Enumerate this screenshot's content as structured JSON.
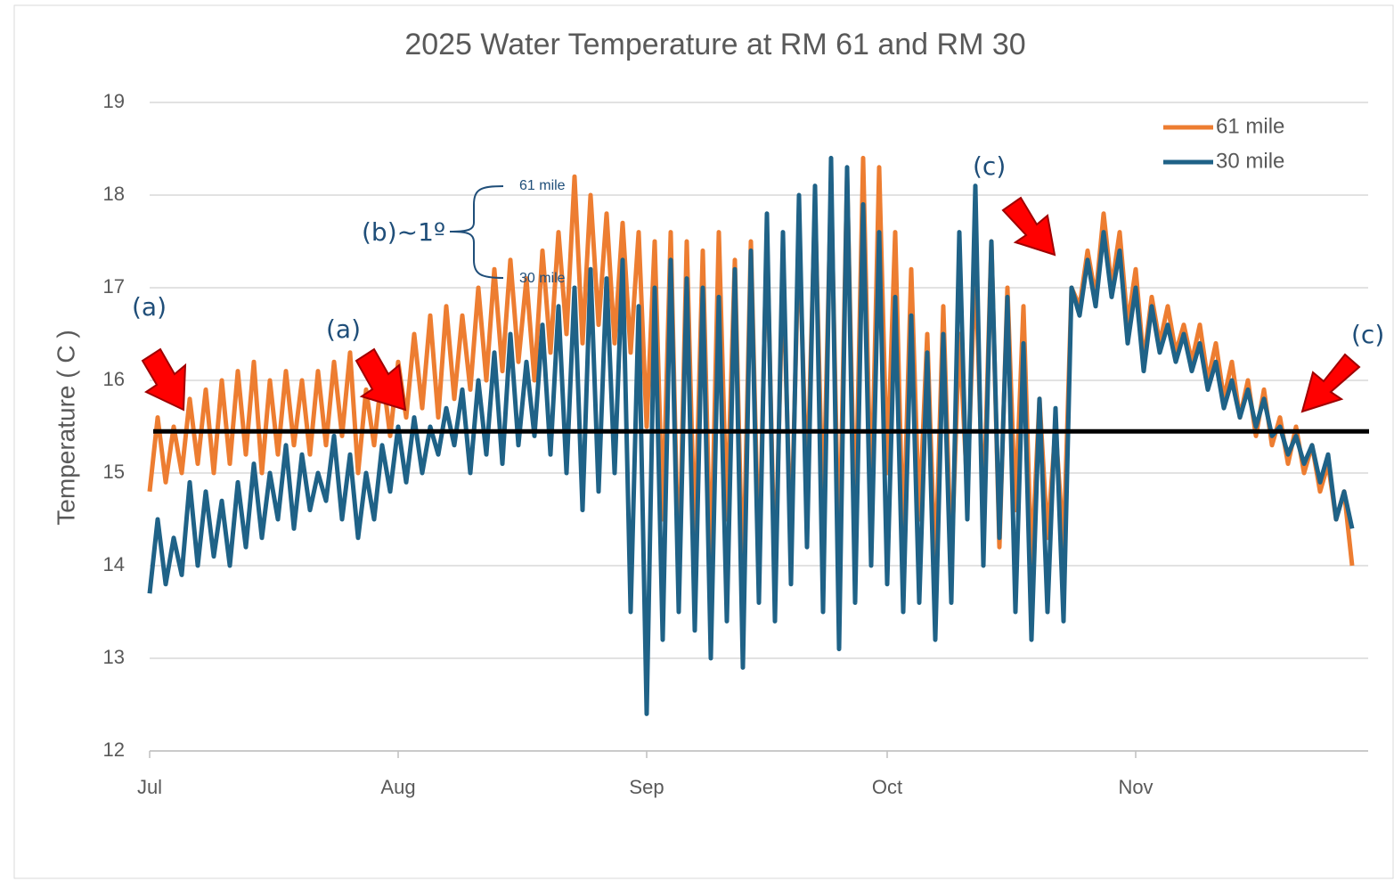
{
  "chart_data": {
    "type": "line",
    "title": "2025 Water Temperature at RM 61 and RM 30",
    "y_label": "Temperature ( C )",
    "x": [
      0,
      1,
      2,
      3,
      4,
      5,
      6,
      7,
      8,
      9,
      10,
      11,
      12,
      13,
      14,
      15,
      16,
      17,
      18,
      19,
      20,
      21,
      22,
      23,
      24,
      25,
      26,
      27,
      28,
      29,
      30,
      31,
      32,
      33,
      34,
      35,
      36,
      37,
      38,
      39,
      40,
      41,
      42,
      43,
      44,
      45,
      46,
      47,
      48,
      49,
      50,
      51,
      52,
      53,
      54,
      55,
      56,
      57,
      58,
      59,
      60,
      61,
      62,
      63,
      64,
      65,
      66,
      67,
      68,
      69,
      70,
      71,
      72,
      73,
      74,
      75,
      76,
      77,
      78,
      79,
      80,
      81,
      82,
      83,
      84,
      85,
      86,
      87,
      88,
      89,
      90,
      91,
      92,
      93,
      94,
      95,
      96,
      97,
      98,
      99,
      100,
      101,
      102,
      103,
      104,
      105,
      106,
      107,
      108,
      109,
      110,
      111,
      112,
      113,
      114,
      115,
      116,
      117,
      118,
      119,
      120,
      121,
      122,
      123,
      124,
      125,
      126,
      127,
      128,
      129,
      130,
      131,
      132,
      133,
      134,
      135,
      136,
      137,
      138,
      139,
      140,
      141,
      142,
      143,
      144,
      145,
      146,
      147,
      148,
      149,
      150
    ],
    "series": [
      {
        "name": "61 mile",
        "color": "#ed7d31",
        "values": [
          14.8,
          15.6,
          14.9,
          15.5,
          15.0,
          15.8,
          15.1,
          15.9,
          15.0,
          16.0,
          15.1,
          16.1,
          15.2,
          16.2,
          15.0,
          16.0,
          15.2,
          16.1,
          15.3,
          16.0,
          15.2,
          16.1,
          15.3,
          16.2,
          15.4,
          16.3,
          15.0,
          15.9,
          15.3,
          16.1,
          15.4,
          16.2,
          15.6,
          16.5,
          15.7,
          16.7,
          15.6,
          16.8,
          15.8,
          16.7,
          15.9,
          17.0,
          16.0,
          17.2,
          16.1,
          17.3,
          16.2,
          17.1,
          16.0,
          17.4,
          16.3,
          17.6,
          16.5,
          18.2,
          16.4,
          18.0,
          16.6,
          17.8,
          16.4,
          17.7,
          16.3,
          17.6,
          15.5,
          17.5,
          14.5,
          17.6,
          13.8,
          17.5,
          14.2,
          17.4,
          13.9,
          17.6,
          14.5,
          17.3,
          13.7,
          17.5,
          14.0,
          17.6,
          13.8,
          17.2,
          14.2,
          17.6,
          14.8,
          17.9,
          14.5,
          18.1,
          14.0,
          18.2,
          14.3,
          18.4,
          14.6,
          18.3,
          15.0,
          17.6,
          14.2,
          17.2,
          14.5,
          16.5,
          13.9,
          16.8,
          14.0,
          16.5,
          14.8,
          17.3,
          14.5,
          17.5,
          14.2,
          17.0,
          14.6,
          16.8,
          14.0,
          15.8,
          14.3,
          15.5,
          14.2,
          17.0,
          16.8,
          17.4,
          16.9,
          17.8,
          17.0,
          17.6,
          16.6,
          17.2,
          16.2,
          16.9,
          16.4,
          16.8,
          16.3,
          16.6,
          16.2,
          16.6,
          16.0,
          16.4,
          15.8,
          16.2,
          15.6,
          16.0,
          15.4,
          15.9,
          15.3,
          15.6,
          15.1,
          15.5,
          15.0,
          15.3,
          14.8,
          15.1,
          14.5,
          14.8,
          14.0
        ]
      },
      {
        "name": "30 mile",
        "color": "#1f6287",
        "values": [
          13.7,
          14.5,
          13.8,
          14.3,
          13.9,
          14.9,
          14.0,
          14.8,
          14.1,
          14.7,
          14.0,
          14.9,
          14.2,
          15.1,
          14.3,
          15.0,
          14.5,
          15.3,
          14.4,
          15.2,
          14.6,
          15.0,
          14.7,
          15.4,
          14.5,
          15.2,
          14.3,
          15.0,
          14.5,
          15.3,
          14.8,
          15.5,
          14.9,
          15.6,
          15.0,
          15.5,
          15.2,
          15.7,
          15.3,
          15.9,
          15.0,
          16.0,
          15.2,
          16.3,
          15.1,
          16.5,
          15.3,
          16.2,
          15.4,
          16.6,
          15.2,
          16.8,
          15.0,
          17.0,
          14.6,
          17.2,
          14.8,
          17.1,
          15.0,
          17.3,
          13.5,
          16.8,
          12.4,
          17.0,
          13.2,
          17.3,
          13.5,
          17.1,
          13.3,
          17.0,
          13.0,
          16.9,
          13.4,
          17.2,
          12.9,
          17.4,
          13.6,
          17.8,
          13.4,
          17.6,
          13.8,
          18.0,
          14.2,
          18.1,
          13.5,
          18.4,
          13.1,
          18.3,
          13.6,
          17.9,
          14.0,
          17.6,
          13.8,
          16.9,
          13.5,
          16.7,
          13.6,
          16.3,
          13.2,
          16.5,
          13.6,
          17.6,
          14.5,
          18.1,
          14.0,
          17.5,
          14.3,
          16.9,
          13.5,
          16.4,
          13.2,
          15.8,
          13.5,
          15.7,
          13.4,
          17.0,
          16.7,
          17.3,
          16.8,
          17.6,
          16.9,
          17.4,
          16.4,
          17.0,
          16.1,
          16.8,
          16.3,
          16.6,
          16.2,
          16.5,
          16.1,
          16.4,
          15.9,
          16.2,
          15.7,
          16.0,
          15.6,
          15.9,
          15.5,
          15.8,
          15.4,
          15.5,
          15.2,
          15.4,
          15.1,
          15.3,
          14.9,
          15.2,
          14.5,
          14.8,
          14.4
        ]
      }
    ],
    "reference_line": {
      "value": 15.45,
      "color": "#000000"
    },
    "xlim": [
      0,
      152
    ],
    "xticks": [
      {
        "value": 0,
        "label": "Jul"
      },
      {
        "value": 31,
        "label": "Aug"
      },
      {
        "value": 62,
        "label": "Sep"
      },
      {
        "value": 92,
        "label": "Oct"
      },
      {
        "value": 123,
        "label": "Nov"
      }
    ],
    "ylim": [
      12,
      19
    ],
    "yticks": [
      12,
      13,
      14,
      15,
      16,
      17,
      18,
      19
    ],
    "grid": true,
    "legend": "top-right",
    "annotations": [
      "(a)",
      "(a)",
      "(b)~1º",
      "61 mile",
      "30 mile",
      "(c)",
      "(c)"
    ]
  }
}
